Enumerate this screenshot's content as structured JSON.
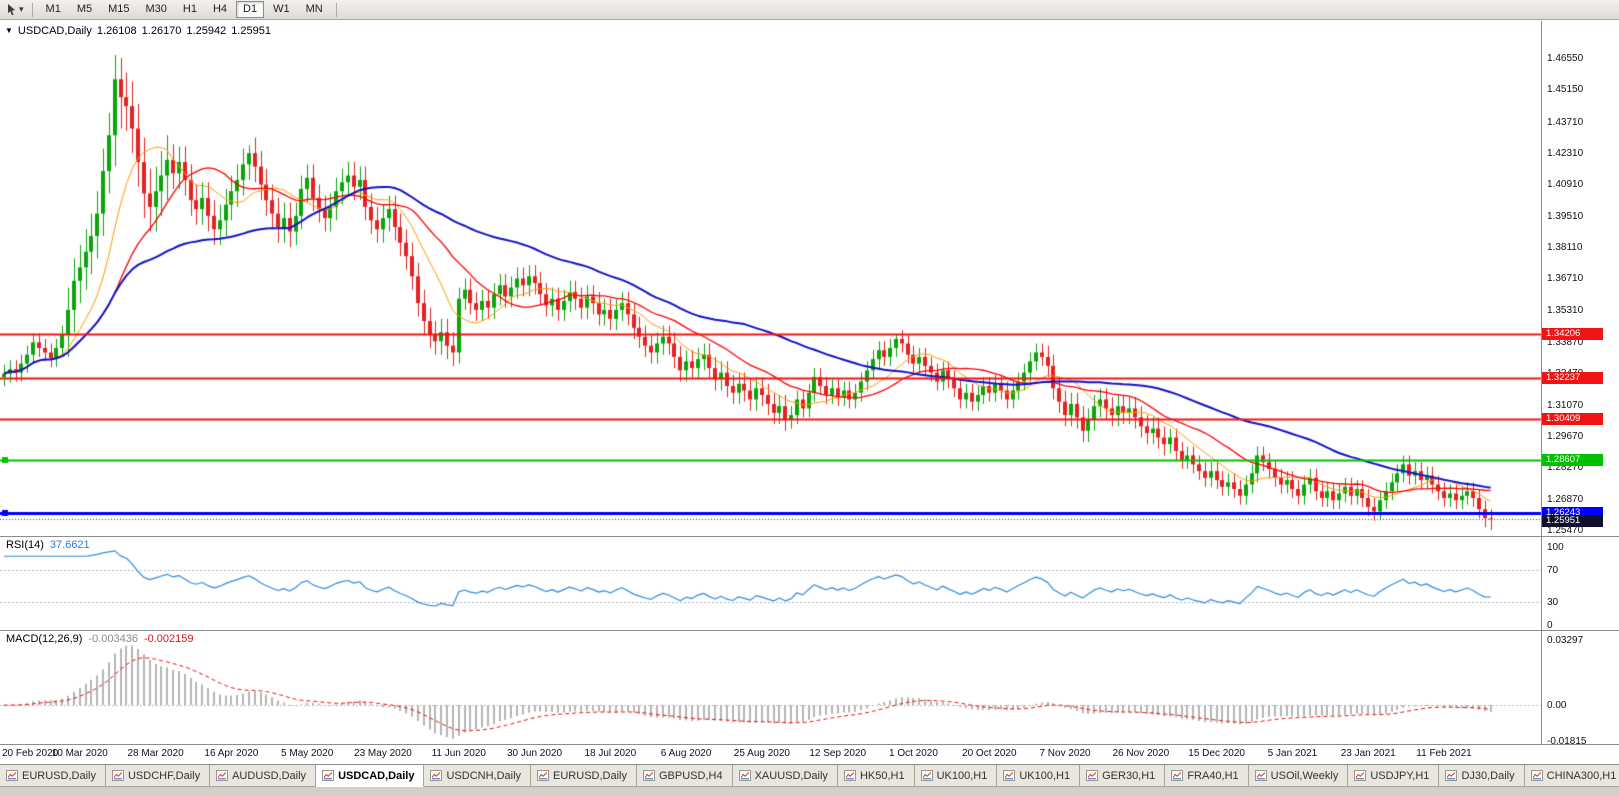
{
  "icons": {
    "dropdown": "▾",
    "quick_trade": "▼"
  },
  "toolbar": {
    "timeframes": [
      {
        "label": "M1",
        "active": false
      },
      {
        "label": "M5",
        "active": false
      },
      {
        "label": "M15",
        "active": false
      },
      {
        "label": "M30",
        "active": false
      },
      {
        "label": "H1",
        "active": false
      },
      {
        "label": "H4",
        "active": false
      },
      {
        "label": "D1",
        "active": true
      },
      {
        "label": "W1",
        "active": false
      },
      {
        "label": "MN",
        "active": false
      }
    ]
  },
  "chart_data": {
    "type": "candlestick",
    "symbol": "USDCAD",
    "timeframe": "Daily",
    "title": "USDCAD,Daily",
    "ohlc_label": {
      "open": "1.26108",
      "high": "1.26170",
      "low": "1.25942",
      "close": "1.25951"
    },
    "price_axis_ticks": [
      "1.46550",
      "1.45150",
      "1.43710",
      "1.42310",
      "1.40910",
      "1.39510",
      "1.38110",
      "1.36710",
      "1.35310",
      "1.33870",
      "1.32470",
      "1.31070",
      "1.29670",
      "1.28270",
      "1.26870",
      "1.25470"
    ],
    "date_labels": [
      "20 Feb 2020",
      "10 Mar 2020",
      "28 Mar 2020",
      "16 Apr 2020",
      "5 May 2020",
      "23 May 2020",
      "11 Jun 2020",
      "30 Jun 2020",
      "18 Jul 2020",
      "6 Aug 2020",
      "25 Aug 2020",
      "12 Sep 2020",
      "1 Oct 2020",
      "20 Oct 2020",
      "7 Nov 2020",
      "26 Nov 2020",
      "15 Dec 2020",
      "5 Jan 2021",
      "23 Jan 2021",
      "11 Feb 2021"
    ],
    "date_bar_indices": [
      0,
      13,
      26,
      39,
      52,
      65,
      78,
      91,
      104,
      117,
      130,
      143,
      156,
      169,
      182,
      195,
      208,
      221,
      234,
      247
    ],
    "candles": {
      "first_open": 1.323,
      "closes": [
        1.3245,
        1.3265,
        1.325,
        1.329,
        1.333,
        1.3385,
        1.336,
        1.334,
        1.3315,
        1.336,
        1.342,
        1.353,
        1.366,
        1.372,
        1.379,
        1.386,
        1.396,
        1.415,
        1.431,
        1.456,
        1.448,
        1.444,
        1.434,
        1.419,
        1.405,
        1.399,
        1.406,
        1.413,
        1.42,
        1.414,
        1.419,
        1.411,
        1.402,
        1.398,
        1.403,
        1.395,
        1.389,
        1.393,
        1.4,
        1.406,
        1.411,
        1.418,
        1.423,
        1.417,
        1.409,
        1.402,
        1.396,
        1.39,
        1.394,
        1.388,
        1.395,
        1.407,
        1.412,
        1.403,
        1.398,
        1.394,
        1.399,
        1.406,
        1.41,
        1.413,
        1.408,
        1.411,
        1.399,
        1.393,
        1.389,
        1.394,
        1.398,
        1.39,
        1.383,
        1.377,
        1.368,
        1.356,
        1.348,
        1.342,
        1.339,
        1.343,
        1.337,
        1.334,
        1.358,
        1.362,
        1.356,
        1.353,
        1.357,
        1.354,
        1.36,
        1.364,
        1.359,
        1.363,
        1.367,
        1.364,
        1.368,
        1.365,
        1.36,
        1.355,
        1.358,
        1.353,
        1.357,
        1.361,
        1.358,
        1.354,
        1.359,
        1.356,
        1.351,
        1.353,
        1.349,
        1.353,
        1.356,
        1.351,
        1.345,
        1.341,
        1.337,
        1.334,
        1.338,
        1.341,
        1.338,
        1.332,
        1.326,
        1.33,
        1.327,
        1.331,
        1.333,
        1.327,
        1.322,
        1.325,
        1.319,
        1.316,
        1.32,
        1.317,
        1.313,
        1.318,
        1.315,
        1.311,
        1.307,
        1.31,
        1.304,
        1.306,
        1.313,
        1.309,
        1.316,
        1.323,
        1.319,
        1.315,
        1.318,
        1.314,
        1.317,
        1.313,
        1.316,
        1.321,
        1.326,
        1.331,
        1.335,
        1.332,
        1.336,
        1.34,
        1.338,
        1.333,
        1.329,
        1.332,
        1.328,
        1.325,
        1.321,
        1.326,
        1.322,
        1.318,
        1.313,
        1.316,
        1.312,
        1.315,
        1.319,
        1.316,
        1.32,
        1.317,
        1.313,
        1.317,
        1.321,
        1.325,
        1.33,
        1.334,
        1.332,
        1.328,
        1.318,
        1.312,
        1.306,
        1.311,
        1.305,
        1.299,
        1.304,
        1.31,
        1.313,
        1.309,
        1.306,
        1.31,
        1.307,
        1.309,
        1.305,
        1.301,
        1.298,
        1.3,
        1.296,
        1.293,
        1.296,
        1.29,
        1.286,
        1.288,
        1.284,
        1.281,
        1.278,
        1.281,
        1.277,
        1.274,
        1.276,
        1.273,
        1.27,
        1.275,
        1.28,
        1.288,
        1.285,
        1.282,
        1.278,
        1.275,
        1.277,
        1.273,
        1.27,
        1.275,
        1.278,
        1.272,
        1.269,
        1.272,
        1.268,
        1.271,
        1.274,
        1.27,
        1.273,
        1.269,
        1.265,
        1.263,
        1.268,
        1.272,
        1.276,
        1.28,
        1.284,
        1.279,
        1.281,
        1.277,
        1.279,
        1.275,
        1.272,
        1.269,
        1.271,
        1.268,
        1.27,
        1.272,
        1.269,
        1.264,
        1.26,
        1.2595
      ],
      "wick_runs": [
        [
          11,
          0.004
        ],
        [
          8,
          0.01
        ],
        [
          2,
          0.014
        ],
        [
          8,
          0.011
        ],
        [
          21,
          0.007
        ],
        [
          20,
          0.006
        ],
        [
          8,
          0.006
        ],
        [
          14,
          0.005
        ],
        [
          22,
          0.005
        ],
        [
          21,
          0.005
        ],
        [
          22,
          0.004
        ],
        [
          22,
          0.004
        ],
        [
          21,
          0.005
        ],
        [
          22,
          0.004
        ],
        [
          20,
          0.004
        ],
        [
          14,
          0.004
        ]
      ],
      "overrides": {
        "19": {
          "high": 1.4668
        },
        "20": {
          "high": 1.4655
        },
        "42": {
          "high": 1.4265
        },
        "153": {
          "high": 1.342
        },
        "235": {
          "low": 1.2588
        },
        "255": {
          "low": 1.2547
        }
      }
    },
    "candle_colors": {
      "up": "#0ba50b",
      "down": "#e42222"
    },
    "moving_averages": [
      {
        "period": 10,
        "color": "#ff9900",
        "width": 1
      },
      {
        "period": 20,
        "color": "#ff0000",
        "width": 1.3
      },
      {
        "period": 50,
        "color": "#1212c8",
        "width": 2
      }
    ],
    "horizontal_lines": [
      {
        "price": 1.34206,
        "label": "1.34206",
        "color": "#f01414",
        "width": 2,
        "handle": false
      },
      {
        "price": 1.32237,
        "label": "1.32237",
        "color": "#f01414",
        "width": 2,
        "handle": false
      },
      {
        "price": 1.30409,
        "label": "1.30409",
        "color": "#f01414",
        "width": 2,
        "handle": false
      },
      {
        "price": 1.28607,
        "label": "1.28607",
        "color": "#00c000",
        "width": 2,
        "handle": true
      },
      {
        "price": 1.26243,
        "label": "1.26243",
        "color": "#0000ff",
        "width": 3,
        "handle": true
      }
    ],
    "last_price": {
      "value": 1.25951,
      "label": "1.25951",
      "bg": "#10102c"
    },
    "rsi": {
      "label": "RSI(14)",
      "period": 14,
      "current": "37.6621",
      "ticks": [
        "100",
        "70",
        "30",
        "0"
      ],
      "levels": [
        70,
        30
      ],
      "color": "#2e8ce0"
    },
    "macd": {
      "label": "MACD(12,26,9)",
      "fast": 12,
      "slow": 26,
      "signal": 9,
      "current_main": "-0.003436",
      "current_signal": "-0.002159",
      "ticks": [
        "0.03297",
        "0.00",
        "-0.01815"
      ],
      "axis_max": 0.03297,
      "axis_min": -0.01815,
      "hist_color": "#b4b4b4",
      "signal_color": "#e81111"
    }
  },
  "tabs": {
    "items": [
      {
        "label": "EURUSD,Daily",
        "active": false
      },
      {
        "label": "USDCHF,Daily",
        "active": false
      },
      {
        "label": "AUDUSD,Daily",
        "active": false
      },
      {
        "label": "USDCAD,Daily",
        "active": true
      },
      {
        "label": "USDCNH,Daily",
        "active": false
      },
      {
        "label": "EURUSD,Daily",
        "active": false
      },
      {
        "label": "GBPUSD,H4",
        "active": false
      },
      {
        "label": "XAUUSD,Daily",
        "active": false
      },
      {
        "label": "HK50,H1",
        "active": false
      },
      {
        "label": "UK100,H1",
        "active": false
      },
      {
        "label": "UK100,H1",
        "active": false
      },
      {
        "label": "GER30,H1",
        "active": false
      },
      {
        "label": "FRA40,H1",
        "active": false
      },
      {
        "label": "USOil,Weekly",
        "active": false
      },
      {
        "label": "USDJPY,H1",
        "active": false
      },
      {
        "label": "DJ30,Daily",
        "active": false
      },
      {
        "label": "CHINA300,H1",
        "active": false
      }
    ]
  }
}
